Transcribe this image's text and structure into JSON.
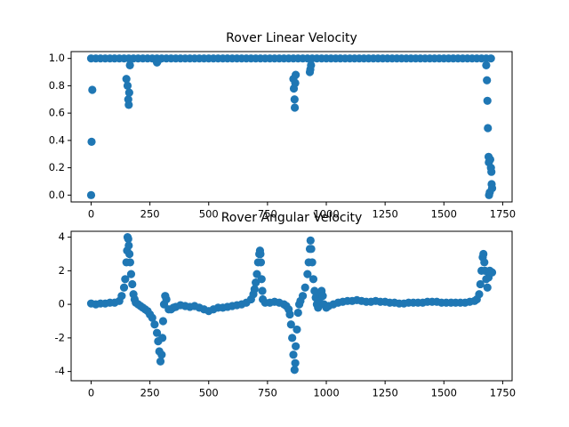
{
  "chart_data": [
    {
      "type": "scatter",
      "title": "Rover Linear Velocity",
      "color": "#1f77b4",
      "x": [
        0,
        20,
        40,
        60,
        80,
        100,
        120,
        140,
        160,
        180,
        200,
        220,
        240,
        260,
        280,
        300,
        320,
        340,
        360,
        380,
        400,
        420,
        440,
        460,
        480,
        500,
        520,
        540,
        560,
        580,
        600,
        620,
        640,
        660,
        680,
        700,
        720,
        740,
        760,
        780,
        800,
        820,
        840,
        860,
        880,
        900,
        920,
        940,
        960,
        980,
        1000,
        1020,
        1040,
        1060,
        1080,
        1100,
        1120,
        1140,
        1160,
        1180,
        1200,
        1220,
        1240,
        1260,
        1280,
        1300,
        1320,
        1340,
        1360,
        1380,
        1400,
        1420,
        1440,
        1460,
        1480,
        1500,
        1520,
        1540,
        1560,
        1580,
        1600,
        1620,
        1640,
        1660,
        1680,
        1700,
        0,
        2,
        5,
        150,
        155,
        158,
        160,
        162,
        165,
        280,
        283,
        860,
        862,
        865,
        866,
        868,
        870,
        930,
        932,
        935,
        1680,
        1683,
        1685,
        1687,
        1690,
        1691,
        1692,
        1695,
        1697,
        1700,
        1702,
        1703,
        1705
      ],
      "values": [
        1,
        1,
        1,
        1,
        1,
        1,
        1,
        1,
        1,
        1,
        1,
        1,
        1,
        1,
        1,
        1,
        1,
        1,
        1,
        1,
        1,
        1,
        1,
        1,
        1,
        1,
        1,
        1,
        1,
        1,
        1,
        1,
        1,
        1,
        1,
        1,
        1,
        1,
        1,
        1,
        1,
        1,
        1,
        1,
        1,
        1,
        1,
        1,
        1,
        1,
        1,
        1,
        1,
        1,
        1,
        1,
        1,
        1,
        1,
        1,
        1,
        1,
        1,
        1,
        1,
        1,
        1,
        1,
        1,
        1,
        1,
        1,
        1,
        1,
        1,
        1,
        1,
        1,
        1,
        1,
        1,
        1,
        1,
        1,
        1,
        1,
        0,
        0.39,
        0.77,
        0.85,
        0.8,
        0.7,
        0.66,
        0.75,
        0.95,
        0.97,
        0.98,
        0.85,
        0.78,
        0.7,
        0.64,
        0.82,
        0.88,
        0.9,
        0.92,
        0.95,
        0.95,
        0.84,
        0.69,
        0.49,
        0.28,
        0.24,
        0,
        0.02,
        0.26,
        0.2,
        0.17,
        0.08,
        0.05
      ],
      "xlim": [
        -85,
        1790
      ],
      "ylim": [
        -0.05,
        1.05
      ],
      "xticks": [
        0,
        250,
        500,
        750,
        1000,
        1250,
        1500,
        1750
      ],
      "yticks": [
        {
          "value": 0,
          "label": "0.0"
        },
        0.2,
        0.4,
        0.6,
        0.8,
        {
          "value": 1,
          "label": "1.0"
        }
      ]
    },
    {
      "type": "scatter",
      "title": "Rover Angular Velocity",
      "color": "#1f77b4",
      "x": [
        0,
        20,
        40,
        60,
        80,
        100,
        120,
        130,
        140,
        145,
        150,
        153,
        155,
        158,
        160,
        163,
        166,
        170,
        175,
        180,
        185,
        190,
        200,
        210,
        220,
        230,
        240,
        250,
        260,
        270,
        280,
        285,
        290,
        295,
        300,
        303,
        306,
        310,
        315,
        320,
        330,
        340,
        350,
        360,
        380,
        400,
        420,
        440,
        460,
        480,
        500,
        520,
        540,
        560,
        580,
        600,
        620,
        640,
        660,
        680,
        690,
        695,
        700,
        705,
        710,
        715,
        718,
        720,
        722,
        725,
        728,
        730,
        740,
        760,
        780,
        800,
        820,
        830,
        840,
        845,
        850,
        855,
        860,
        865,
        868,
        870,
        875,
        880,
        885,
        890,
        900,
        910,
        920,
        925,
        930,
        933,
        936,
        940,
        945,
        950,
        955,
        960,
        965,
        970,
        975,
        980,
        985,
        990,
        1000,
        1010,
        1030,
        1050,
        1070,
        1090,
        1110,
        1130,
        1150,
        1170,
        1190,
        1210,
        1230,
        1250,
        1270,
        1290,
        1310,
        1330,
        1350,
        1370,
        1390,
        1410,
        1430,
        1450,
        1470,
        1490,
        1510,
        1530,
        1550,
        1570,
        1590,
        1610,
        1630,
        1640,
        1650,
        1655,
        1660,
        1665,
        1668,
        1672,
        1675,
        1680,
        1685,
        1690,
        1695,
        1700,
        1705
      ],
      "values": [
        0.05,
        0,
        0.05,
        0.05,
        0.1,
        0.1,
        0.2,
        0.5,
        1,
        1.5,
        2.5,
        3.2,
        4,
        3.9,
        3.5,
        3,
        2.5,
        1.8,
        1.2,
        0.6,
        0.3,
        0.1,
        0,
        -0.1,
        -0.2,
        -0.3,
        -0.4,
        -0.6,
        -0.8,
        -1.2,
        -1.7,
        -2.2,
        -2.8,
        -3.4,
        -3,
        -2,
        -1,
        0,
        0.5,
        0.3,
        -0.3,
        -0.3,
        -0.2,
        -0.15,
        -0.05,
        -0.1,
        -0.15,
        -0.1,
        -0.2,
        -0.3,
        -0.4,
        -0.3,
        -0.2,
        -0.2,
        -0.15,
        -0.1,
        -0.05,
        0,
        0.1,
        0.3,
        0.6,
        0.9,
        1.3,
        1.8,
        2.5,
        3,
        3.2,
        3,
        2.5,
        1.5,
        0.8,
        0.3,
        0.1,
        0.1,
        0.15,
        0.1,
        0,
        -0.1,
        -0.3,
        -0.6,
        -1.2,
        -2,
        -3,
        -3.9,
        -3.5,
        -2.5,
        -1.5,
        -0.5,
        0,
        0.2,
        0.5,
        1,
        1.8,
        2.5,
        3.3,
        3.8,
        3.3,
        2.5,
        1.5,
        0.8,
        0.4,
        0,
        -0.2,
        0.3,
        0.6,
        0.8,
        0.5,
        0,
        -0.2,
        -0.1,
        0,
        0.1,
        0.15,
        0.2,
        0.2,
        0.25,
        0.2,
        0.15,
        0.15,
        0.2,
        0.15,
        0.15,
        0.1,
        0.1,
        0.05,
        0.05,
        0.1,
        0.1,
        0.1,
        0.1,
        0.15,
        0.15,
        0.15,
        0.1,
        0.1,
        0.1,
        0.1,
        0.1,
        0.1,
        0.15,
        0.2,
        0.3,
        0.6,
        1.2,
        2,
        2.8,
        3,
        2.5,
        2,
        1.5,
        1,
        1.6,
        2,
        1.9,
        1.9
      ],
      "xlim": [
        -85,
        1790
      ],
      "ylim": [
        -4.55,
        4.35
      ],
      "xticks": [
        0,
        250,
        500,
        750,
        1000,
        1250,
        1500,
        1750
      ],
      "yticks": [
        -4,
        -2,
        0,
        2,
        4
      ]
    }
  ]
}
